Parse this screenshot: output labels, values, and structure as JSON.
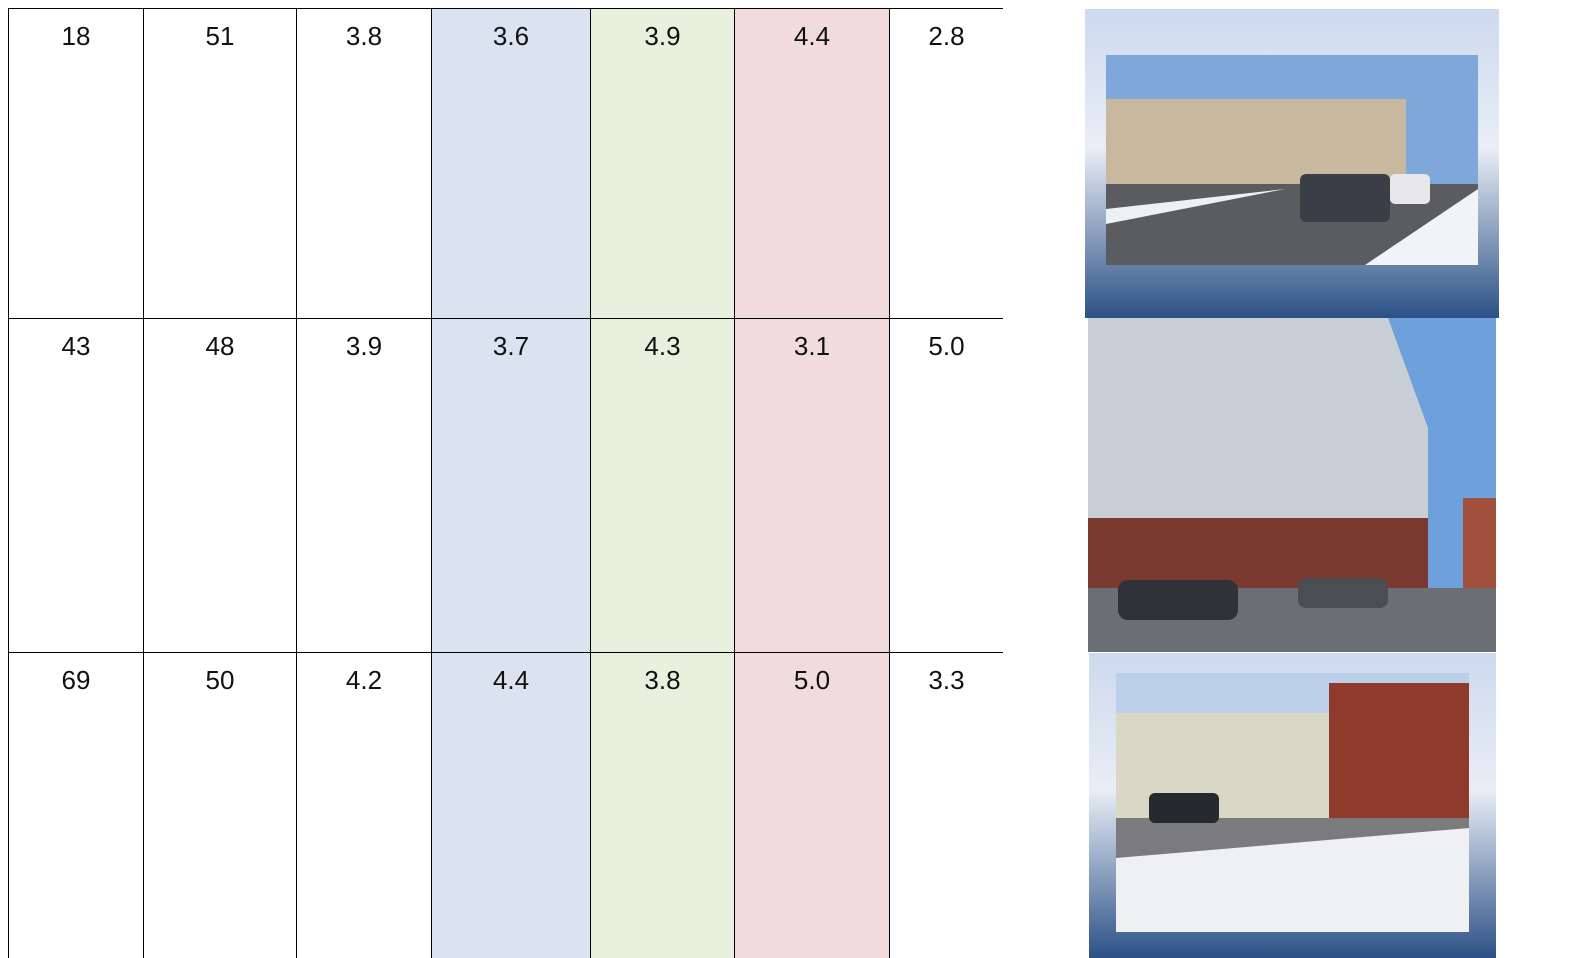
{
  "table": {
    "rows": [
      [
        "18",
        "51",
        "3.8",
        "3.6",
        "3.9",
        "4.4",
        "2.8"
      ],
      [
        "43",
        "48",
        "3.9",
        "3.7",
        "4.3",
        "3.1",
        "5.0"
      ],
      [
        "69",
        "50",
        "4.2",
        "4.4",
        "3.8",
        "5.0",
        "3.3"
      ]
    ]
  }
}
